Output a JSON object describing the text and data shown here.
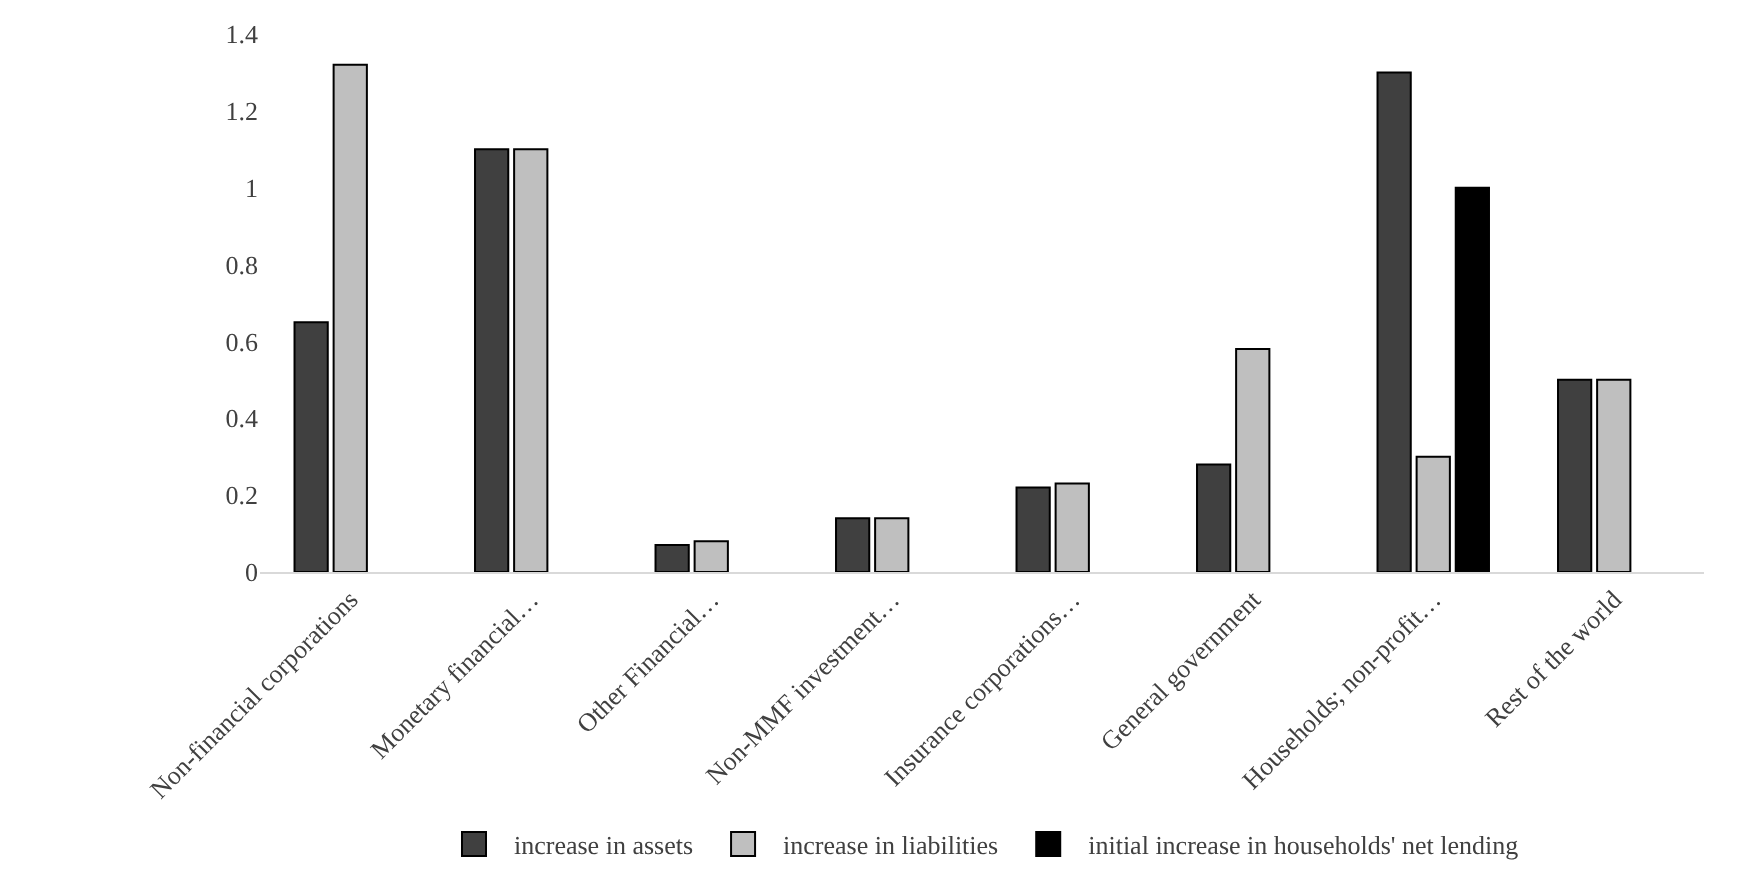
{
  "chart_data": {
    "type": "bar",
    "categories": [
      "Non-financial corporations",
      "Monetary financial…",
      "Other Financial…",
      "Non-MMF investment…",
      "Insurance corporations…",
      "General government",
      "Households; non-profit…",
      "Rest of the world"
    ],
    "series": [
      {
        "name": "increase in assets",
        "color": "#404040",
        "values": [
          0.65,
          1.1,
          0.07,
          0.14,
          0.22,
          0.28,
          1.3,
          0.5
        ]
      },
      {
        "name": "increase in liabilities",
        "color": "#bfbfbf",
        "values": [
          1.32,
          1.1,
          0.08,
          0.14,
          0.23,
          0.58,
          0.3,
          0.5
        ]
      },
      {
        "name": "initial increase in households' net lending",
        "color": "#000000",
        "values": [
          null,
          null,
          null,
          null,
          null,
          null,
          1.0,
          null
        ]
      }
    ],
    "ylim": [
      0,
      1.4
    ],
    "yticks": [
      0,
      0.2,
      0.4,
      0.6,
      0.8,
      1,
      1.2,
      1.4
    ],
    "legend": "bottom"
  }
}
